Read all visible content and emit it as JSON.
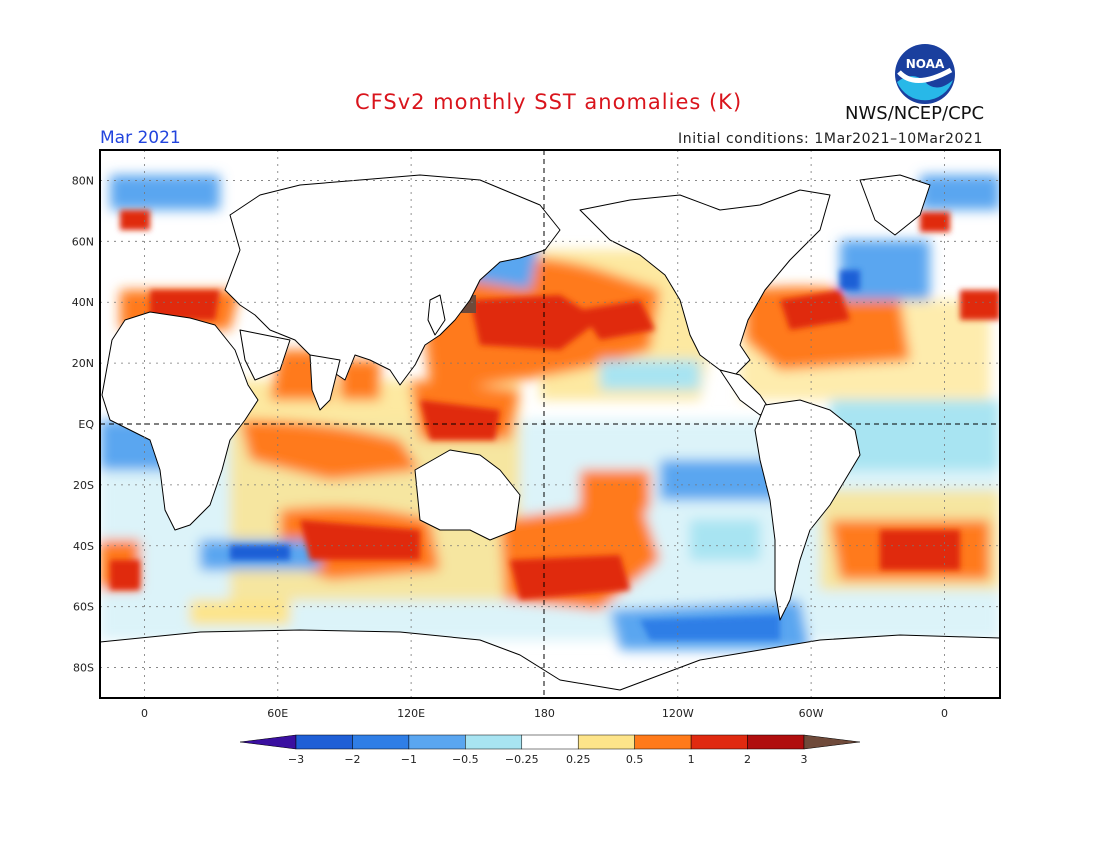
{
  "header": {
    "title": "CFSv2 monthly SST anomalies (K)",
    "period": "Mar 2021",
    "initial_conditions": "Initial conditions: 1Mar2021–10Mar2021",
    "agency": "NWS/NCEP/CPC",
    "logo_text": "NOAA"
  },
  "axes": {
    "lat_labels": [
      "80N",
      "60N",
      "40N",
      "20N",
      "EQ",
      "20S",
      "40S",
      "60S",
      "80S"
    ],
    "lat_values": [
      80,
      60,
      40,
      20,
      0,
      -20,
      -40,
      -60,
      -80
    ],
    "lon_labels": [
      "0",
      "60E",
      "120E",
      "180",
      "120W",
      "60W",
      "0"
    ],
    "lon_values": [
      0,
      60,
      120,
      180,
      240,
      300,
      360
    ],
    "lon_range": [
      -20,
      385
    ],
    "lat_range": [
      -90,
      90
    ],
    "grid": "dotted",
    "reference_lines": [
      "equator",
      "dateline"
    ]
  },
  "colorbar": {
    "ticks": [
      "−3",
      "−2",
      "−1",
      "−0.5",
      "−0.25",
      "0.25",
      "0.5",
      "1",
      "2",
      "3"
    ],
    "colors": [
      "#3a0fa0",
      "#1f5fd6",
      "#2f7ee6",
      "#5aa6f0",
      "#a8e4f2",
      "#ffffff",
      "#fde48a",
      "#ff7a1a",
      "#e02a10",
      "#b00e0e",
      "#6f4a3a"
    ]
  },
  "regions": [
    {
      "name": "north-pacific-warm",
      "lon": 165,
      "lat": 35,
      "level": "warm-strong"
    },
    {
      "name": "west-pacific-warm",
      "lon": 150,
      "lat": 10,
      "level": "warm-strong"
    },
    {
      "name": "north-atlantic-warm",
      "lon": 300,
      "lat": 32,
      "level": "warm-strong"
    },
    {
      "name": "south-pacific-warm",
      "lon": 195,
      "lat": -45,
      "level": "warm-strong"
    },
    {
      "name": "south-indian-warm",
      "lon": 90,
      "lat": -38,
      "level": "warm-strong"
    },
    {
      "name": "indian-ocean-warm",
      "lon": 80,
      "lat": -5,
      "level": "warm"
    },
    {
      "name": "east-pacific-cool",
      "lon": 240,
      "lat": -20,
      "level": "cool"
    },
    {
      "name": "southern-ocean-cool",
      "lon": 255,
      "lat": -62,
      "level": "cool-strong"
    },
    {
      "name": "south-atlantic-warm",
      "lon": 330,
      "lat": -40,
      "level": "warm-strong"
    },
    {
      "name": "japan-sea-hotspot",
      "lon": 145,
      "lat": 40,
      "level": "hot"
    }
  ]
}
